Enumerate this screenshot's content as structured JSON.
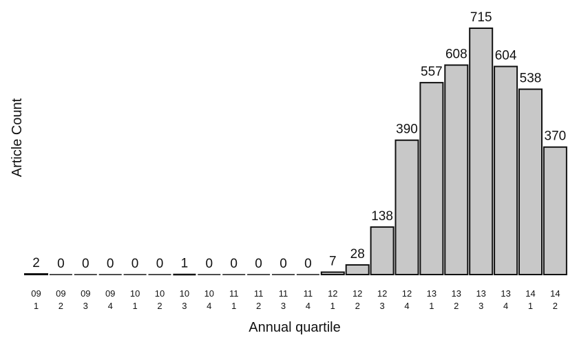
{
  "colors": {
    "bar_fill": "#c8c8c8",
    "bar_stroke": "#111111",
    "text": "#111111"
  },
  "chart_data": {
    "type": "bar",
    "xlabel": "Annual quartile",
    "ylabel": "Article Count",
    "ylim": [
      0,
      715
    ],
    "grid": false,
    "categories": [
      {
        "year": "09",
        "quarter": "1"
      },
      {
        "year": "09",
        "quarter": "2"
      },
      {
        "year": "09",
        "quarter": "3"
      },
      {
        "year": "09",
        "quarter": "4"
      },
      {
        "year": "10",
        "quarter": "1"
      },
      {
        "year": "10",
        "quarter": "2"
      },
      {
        "year": "10",
        "quarter": "3"
      },
      {
        "year": "10",
        "quarter": "4"
      },
      {
        "year": "11",
        "quarter": "1"
      },
      {
        "year": "11",
        "quarter": "2"
      },
      {
        "year": "11",
        "quarter": "3"
      },
      {
        "year": "11",
        "quarter": "4"
      },
      {
        "year": "12",
        "quarter": "1"
      },
      {
        "year": "12",
        "quarter": "2"
      },
      {
        "year": "12",
        "quarter": "3"
      },
      {
        "year": "12",
        "quarter": "4"
      },
      {
        "year": "13",
        "quarter": "1"
      },
      {
        "year": "13",
        "quarter": "2"
      },
      {
        "year": "13",
        "quarter": "3"
      },
      {
        "year": "13",
        "quarter": "4"
      },
      {
        "year": "14",
        "quarter": "1"
      },
      {
        "year": "14",
        "quarter": "2"
      }
    ],
    "values": [
      2,
      0,
      0,
      0,
      0,
      0,
      1,
      0,
      0,
      0,
      0,
      0,
      7,
      28,
      138,
      390,
      557,
      608,
      715,
      604,
      538,
      370
    ]
  }
}
